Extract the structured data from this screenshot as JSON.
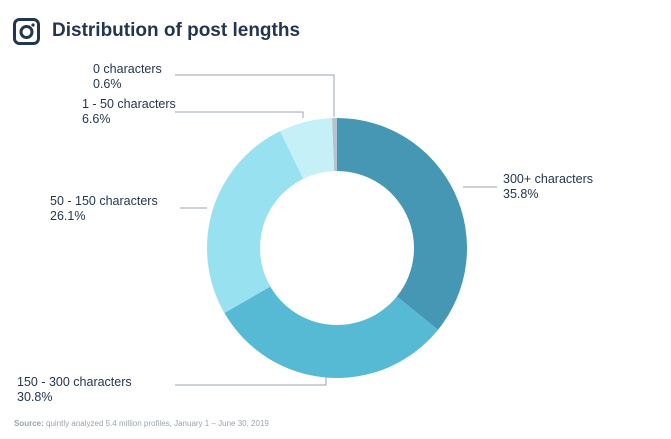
{
  "title": "Distribution of post lengths",
  "source_label": "Source:",
  "source_text": "quintly analyzed 5.4 million profiles, January 1 – June 30, 2019",
  "chart_data": {
    "type": "pie",
    "variant": "donut",
    "title": "Distribution of post lengths",
    "slices": [
      {
        "label": "300+ characters",
        "value": 35.8,
        "value_label": "35.8%",
        "color": "#4597b3"
      },
      {
        "label": "150 - 300 characters",
        "value": 30.8,
        "value_label": "30.8%",
        "color": "#56bad5"
      },
      {
        "label": "50 - 150 characters",
        "value": 26.1,
        "value_label": "26.1%",
        "color": "#97e1f0"
      },
      {
        "label": "1 - 50 characters",
        "value": 6.6,
        "value_label": "6.6%",
        "color": "#c6f0f8"
      },
      {
        "label": "0 characters",
        "value": 0.6,
        "value_label": "0.6%",
        "color": "#b5c3d0"
      }
    ]
  }
}
